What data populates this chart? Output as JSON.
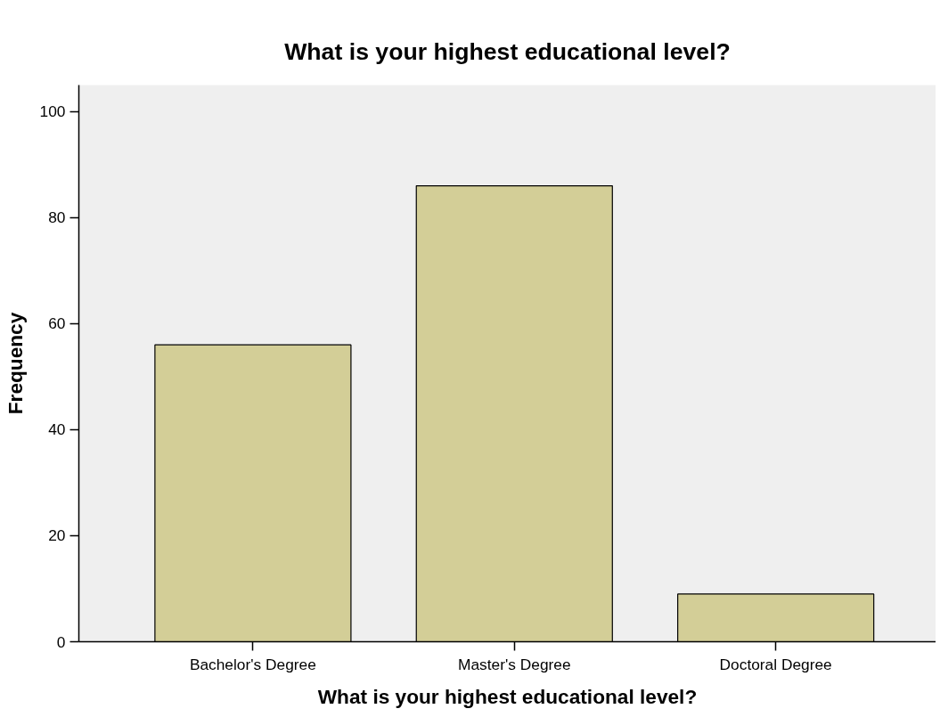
{
  "chart_data": {
    "type": "bar",
    "title": "What is your highest educational level?",
    "xlabel": "What is your highest educational level?",
    "ylabel": "Frequency",
    "categories": [
      "Bachelor's Degree",
      "Master's Degree",
      "Doctoral Degree"
    ],
    "values": [
      56,
      86,
      9
    ],
    "color": "#d3ce97",
    "ylim": [
      0,
      105
    ],
    "yticks": [
      0,
      20,
      40,
      60,
      80,
      100
    ],
    "grid": false
  }
}
